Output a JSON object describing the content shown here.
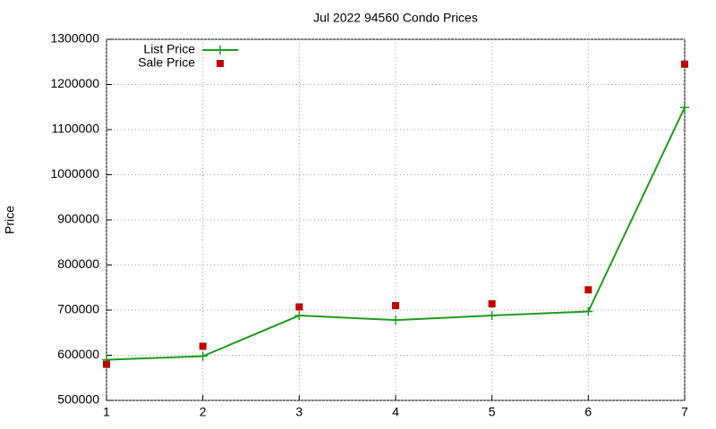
{
  "chart_data": {
    "type": "line",
    "title": "Jul 2022 94560 Condo Prices",
    "y_label": "Price",
    "x": [
      1,
      2,
      3,
      4,
      5,
      6,
      7
    ],
    "xlim": [
      1,
      7
    ],
    "xticks": [
      1,
      2,
      3,
      4,
      5,
      6,
      7
    ],
    "ylim": [
      500000,
      1300000
    ],
    "yticks": [
      500000,
      600000,
      700000,
      800000,
      900000,
      1000000,
      1100000,
      1200000,
      1300000
    ],
    "grid": true,
    "legend": "top-left",
    "series": [
      {
        "name": "List Price",
        "color": "#1a9e1a",
        "style": "linespoints",
        "values": [
          590000,
          598000,
          688000,
          678000,
          688000,
          697000,
          1149000
        ]
      },
      {
        "name": "Sale Price",
        "color": "#c00000",
        "style": "points",
        "values": [
          580000,
          620000,
          707000,
          710000,
          714000,
          745000,
          1245000
        ]
      }
    ]
  }
}
